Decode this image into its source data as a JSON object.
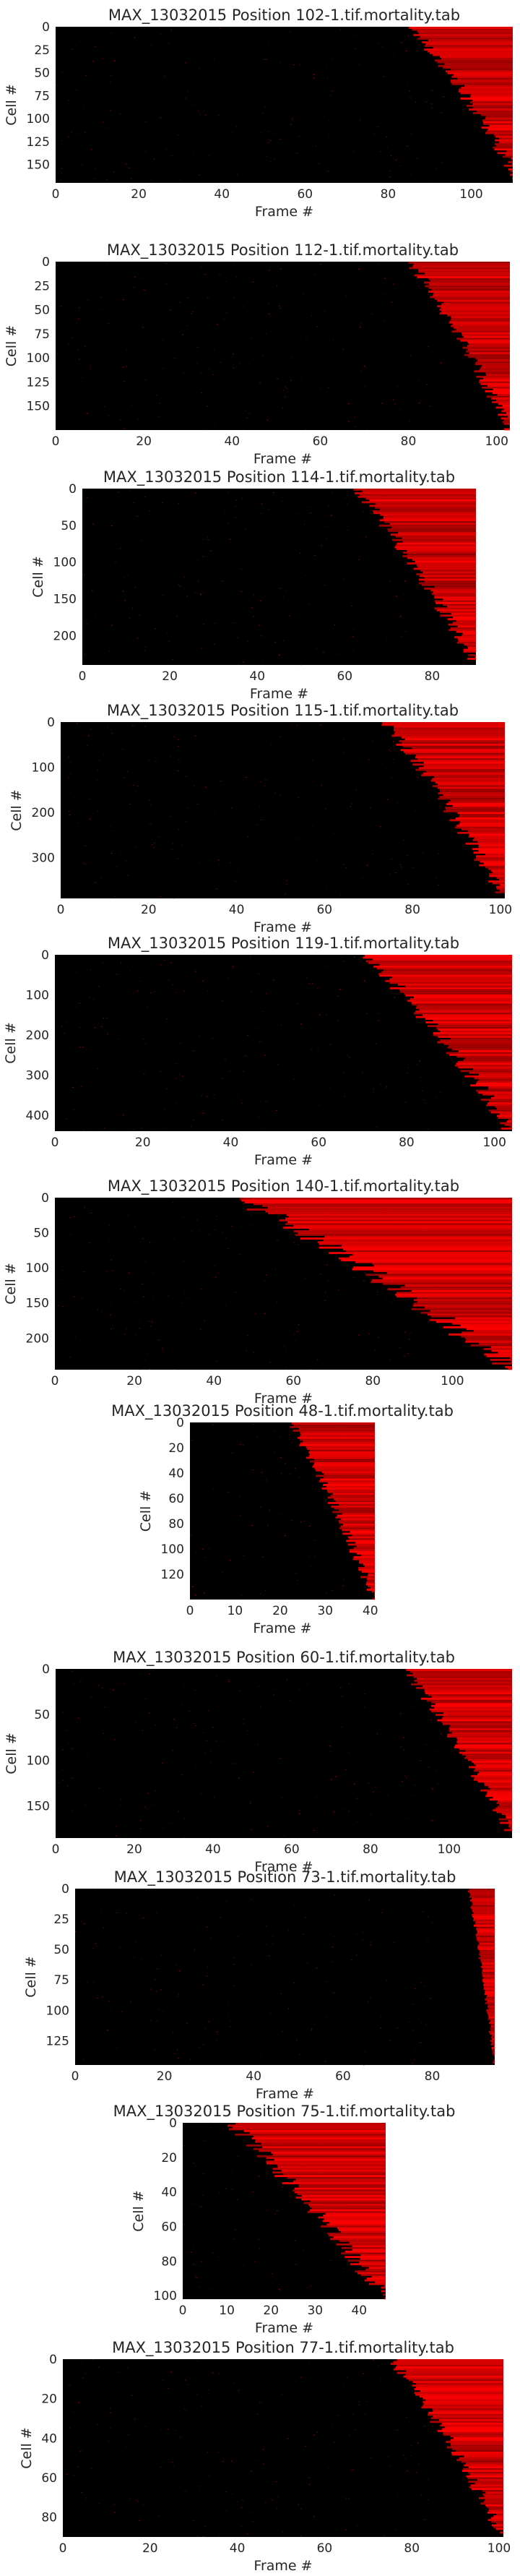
{
  "figure": {
    "xlabel": "Frame #",
    "ylabel": "Cell #"
  },
  "chart_data": [
    {
      "type": "heatmap",
      "title": "MAX_13032015 Position 102-1.tif.mortality.tab",
      "xlabel": "Frame #",
      "ylabel": "Cell #",
      "xlim": [
        0,
        110
      ],
      "ylim": [
        0,
        170
      ],
      "xticks": [
        0,
        20,
        40,
        60,
        80,
        100
      ],
      "yticks": [
        0,
        25,
        50,
        75,
        100,
        125,
        150
      ],
      "death_onset_frames": [
        85,
        112
      ],
      "colormap": [
        "#000000",
        "#ff0000"
      ]
    },
    {
      "type": "heatmap",
      "title": "MAX_13032015 Position 112-1.tif.mortality.tab",
      "xlabel": "Frame #",
      "ylabel": "Cell #",
      "xlim": [
        0,
        103
      ],
      "ylim": [
        0,
        175
      ],
      "xticks": [
        0,
        20,
        40,
        60,
        80,
        100
      ],
      "yticks": [
        0,
        25,
        50,
        75,
        100,
        125,
        150
      ],
      "death_onset_frames": [
        80,
        103
      ],
      "colormap": [
        "#000000",
        "#ff0000"
      ]
    },
    {
      "type": "heatmap",
      "title": "MAX_13032015 Position 114-1.tif.mortality.tab",
      "xlabel": "Frame #",
      "ylabel": "Cell #",
      "xlim": [
        0,
        90
      ],
      "ylim": [
        0,
        240
      ],
      "xticks": [
        0,
        20,
        40,
        60,
        80
      ],
      "yticks": [
        0,
        50,
        100,
        150,
        200
      ],
      "death_onset_frames": [
        62,
        90
      ],
      "colormap": [
        "#000000",
        "#ff0000"
      ]
    },
    {
      "type": "heatmap",
      "title": "MAX_13032015 Position 115-1.tif.mortality.tab",
      "xlabel": "Frame #",
      "ylabel": "Cell #",
      "xlim": [
        0,
        101
      ],
      "ylim": [
        0,
        390
      ],
      "xticks": [
        0,
        20,
        40,
        60,
        80,
        100
      ],
      "yticks": [
        0,
        100,
        200,
        300
      ],
      "death_onset_frames": [
        73,
        101
      ],
      "colormap": [
        "#000000",
        "#ff0000"
      ]
    },
    {
      "type": "heatmap",
      "title": "MAX_13032015 Position 119-1.tif.mortality.tab",
      "xlabel": "Frame #",
      "ylabel": "Cell #",
      "xlim": [
        0,
        104
      ],
      "ylim": [
        0,
        440
      ],
      "xticks": [
        0,
        20,
        40,
        60,
        80,
        100
      ],
      "yticks": [
        0,
        100,
        200,
        300,
        400
      ],
      "death_onset_frames": [
        70,
        104
      ],
      "colormap": [
        "#000000",
        "#ff0000"
      ]
    },
    {
      "type": "heatmap",
      "title": "MAX_13032015 Position 140-1.tif.mortality.tab",
      "xlabel": "Frame #",
      "ylabel": "Cell #",
      "xlim": [
        0,
        115
      ],
      "ylim": [
        0,
        245
      ],
      "xticks": [
        0,
        20,
        40,
        60,
        80,
        100
      ],
      "yticks": [
        0,
        50,
        100,
        150,
        200
      ],
      "death_onset_frames": [
        45,
        115
      ],
      "colormap": [
        "#000000",
        "#ff0000"
      ]
    },
    {
      "type": "heatmap",
      "title": "MAX_13032015 Position 48-1.tif.mortality.tab",
      "xlabel": "Frame #",
      "ylabel": "Cell #",
      "xlim": [
        0,
        41
      ],
      "ylim": [
        0,
        140
      ],
      "xticks": [
        0,
        10,
        20,
        30,
        40
      ],
      "yticks": [
        0,
        20,
        40,
        60,
        80,
        100,
        120
      ],
      "death_onset_frames": [
        22,
        41
      ],
      "colormap": [
        "#000000",
        "#ff0000"
      ]
    },
    {
      "type": "heatmap",
      "title": "MAX_13032015 Position 60-1.tif.mortality.tab",
      "xlabel": "Frame #",
      "ylabel": "Cell #",
      "xlim": [
        0,
        116
      ],
      "ylim": [
        0,
        185
      ],
      "xticks": [
        0,
        20,
        40,
        60,
        80,
        100
      ],
      "yticks": [
        0,
        50,
        100,
        150
      ],
      "death_onset_frames": [
        88,
        116
      ],
      "colormap": [
        "#000000",
        "#ff0000"
      ]
    },
    {
      "type": "heatmap",
      "title": "MAX_13032015 Position 73-1.tif.mortality.tab",
      "xlabel": "Frame #",
      "ylabel": "Cell #",
      "xlim": [
        0,
        94
      ],
      "ylim": [
        0,
        145
      ],
      "xticks": [
        0,
        20,
        40,
        60,
        80
      ],
      "yticks": [
        0,
        25,
        50,
        75,
        100,
        125
      ],
      "death_onset_frames": [
        88,
        94
      ],
      "colormap": [
        "#000000",
        "#ff0000"
      ]
    },
    {
      "type": "heatmap",
      "title": "MAX_13032015 Position 75-1.tif.mortality.tab",
      "xlabel": "Frame #",
      "ylabel": "Cell #",
      "xlim": [
        0,
        46
      ],
      "ylim": [
        0,
        102
      ],
      "xticks": [
        0,
        10,
        20,
        30,
        40
      ],
      "yticks": [
        0,
        20,
        40,
        60,
        80,
        100
      ],
      "death_onset_frames": [
        10,
        46
      ],
      "colormap": [
        "#000000",
        "#ff0000"
      ]
    },
    {
      "type": "heatmap",
      "title": "MAX_13032015 Position 77-1.tif.mortality.tab",
      "xlabel": "Frame #",
      "ylabel": "Cell #",
      "xlim": [
        0,
        101
      ],
      "ylim": [
        0,
        90
      ],
      "xticks": [
        0,
        20,
        40,
        60,
        80,
        100
      ],
      "yticks": [
        0,
        20,
        40,
        60,
        80
      ],
      "death_onset_frames": [
        75,
        101
      ],
      "colormap": [
        "#000000",
        "#ff0000"
      ]
    }
  ]
}
